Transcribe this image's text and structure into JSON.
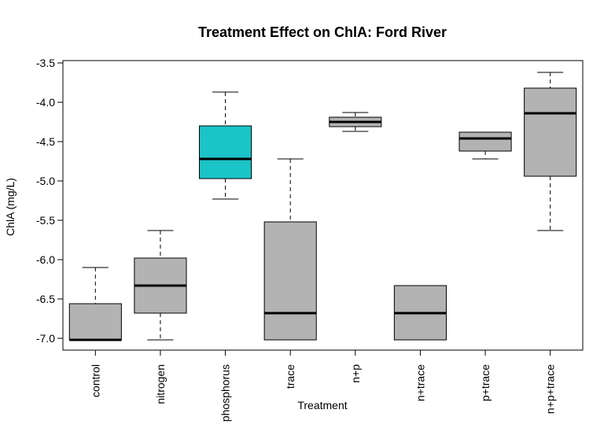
{
  "chart_data": {
    "type": "boxplot",
    "title": "Treatment Effect on ChlA: Ford River",
    "xlabel": "Treatment",
    "ylabel": "ChlA (mg/L)",
    "ylim": [
      -7.15,
      -3.47
    ],
    "yticks": [
      -3.5,
      -4.0,
      -4.5,
      -5.0,
      -5.5,
      -6.0,
      -6.5,
      -7.0
    ],
    "ytick_labels": [
      "-3.5",
      "-4.0",
      "-4.5",
      "-5.0",
      "-5.5",
      "-6.0",
      "-6.5",
      "-7.0"
    ],
    "grid": false,
    "categories": [
      "control",
      "nitrogen",
      "phosphorus",
      "trace",
      "n+p",
      "n+trace",
      "p+trace",
      "n+p+trace"
    ],
    "boxes": [
      {
        "category": "control",
        "whisker_low": -7.02,
        "q1": -7.02,
        "median": -7.02,
        "q3": -6.56,
        "whisker_high": -6.1,
        "color": "#b3b3b3"
      },
      {
        "category": "nitrogen",
        "whisker_low": -7.02,
        "q1": -6.68,
        "median": -6.33,
        "q3": -5.98,
        "whisker_high": -5.63,
        "color": "#b3b3b3"
      },
      {
        "category": "phosphorus",
        "whisker_low": -5.23,
        "q1": -4.97,
        "median": -4.72,
        "q3": -4.3,
        "whisker_high": -3.87,
        "color": "#1bc4c7"
      },
      {
        "category": "trace",
        "whisker_low": -7.02,
        "q1": -7.02,
        "median": -6.68,
        "q3": -5.52,
        "whisker_high": -4.72,
        "color": "#b3b3b3"
      },
      {
        "category": "n+p",
        "whisker_low": -4.37,
        "q1": -4.31,
        "median": -4.25,
        "q3": -4.19,
        "whisker_high": -4.13,
        "color": "#b3b3b3"
      },
      {
        "category": "n+trace",
        "whisker_low": -7.02,
        "q1": -7.02,
        "median": -6.68,
        "q3": -6.33,
        "whisker_high": -6.33,
        "color": "#b3b3b3"
      },
      {
        "category": "p+trace",
        "whisker_low": -4.72,
        "q1": -4.62,
        "median": -4.46,
        "q3": -4.38,
        "whisker_high": -4.38,
        "color": "#b3b3b3"
      },
      {
        "category": "n+p+trace",
        "whisker_low": -5.63,
        "q1": -4.94,
        "median": -4.14,
        "q3": -3.82,
        "whisker_high": -3.62,
        "color": "#b3b3b3"
      }
    ]
  }
}
